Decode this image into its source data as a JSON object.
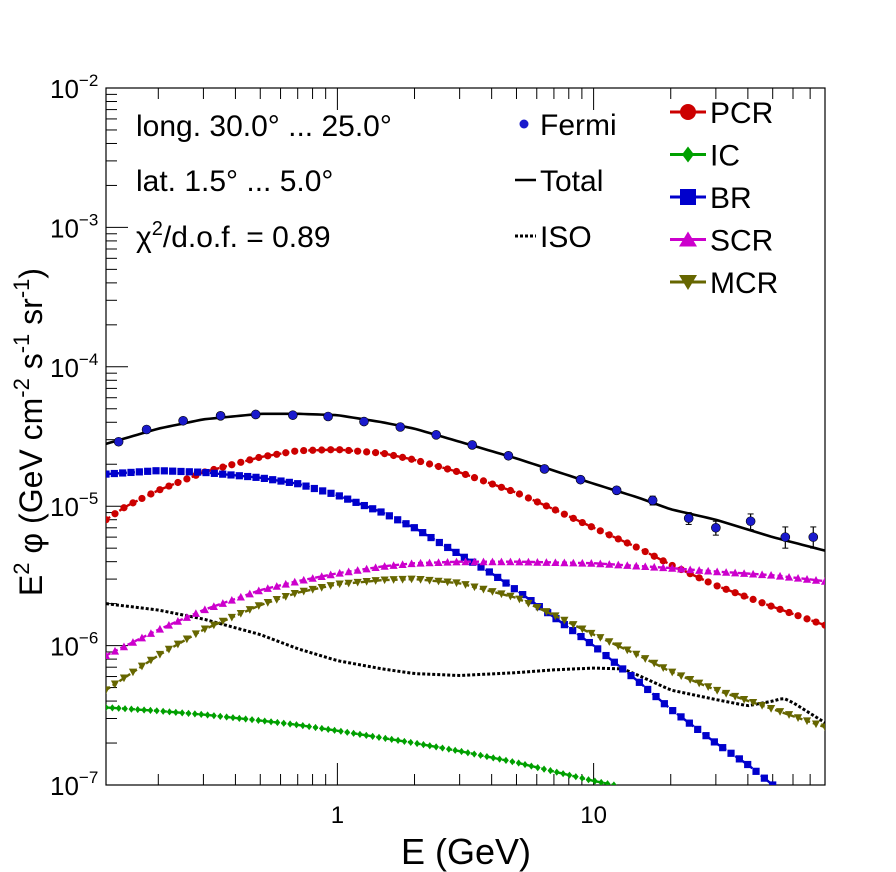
{
  "chart_data": {
    "type": "line",
    "title": "",
    "xlabel": "E (GeV)",
    "ylabel_parts": [
      "E",
      "2",
      " φ (GeV cm",
      "-2",
      " s",
      "-1",
      " sr",
      "-1",
      ")"
    ],
    "x_scale": "log",
    "y_scale": "log",
    "xlim": [
      0.125,
      80
    ],
    "ylim": [
      1e-07,
      0.01
    ],
    "x_tick_labels": [
      {
        "value": 1,
        "label": "1"
      },
      {
        "value": 10,
        "label": "10"
      }
    ],
    "y_tick_labels": [
      {
        "value": 1e-07,
        "base": "10",
        "exp": "−7"
      },
      {
        "value": 1e-06,
        "base": "10",
        "exp": "−6"
      },
      {
        "value": 1e-05,
        "base": "10",
        "exp": "−5"
      },
      {
        "value": 0.0001,
        "base": "10",
        "exp": "−4"
      },
      {
        "value": 0.001,
        "base": "10",
        "exp": "−3"
      },
      {
        "value": 0.01,
        "base": "10",
        "exp": "−2"
      }
    ],
    "annotations": {
      "longitude": "long. 30.0° ... 25.0°",
      "latitude": "lat. 1.5° ... 5.0°",
      "chi2_prefix": "χ",
      "chi2_sup": "2",
      "chi2_rest": "/d.o.f. = 0.89"
    },
    "legend_left": [
      {
        "name": "Fermi",
        "marker": "dot",
        "color": "#1a1acc"
      },
      {
        "name": "Total",
        "marker": "line",
        "color": "#000000"
      },
      {
        "name": "ISO",
        "marker": "dotted",
        "color": "#000000"
      }
    ],
    "legend_right": [
      {
        "name": "PCR",
        "marker": "circle",
        "color": "#cc0000"
      },
      {
        "name": "IC",
        "marker": "diamond",
        "color": "#00a000"
      },
      {
        "name": "BR",
        "marker": "square",
        "color": "#0000cc"
      },
      {
        "name": "SCR",
        "marker": "triangle-up",
        "color": "#cc00cc"
      },
      {
        "name": "MCR",
        "marker": "triangle-down",
        "color": "#666600"
      }
    ],
    "fermi": {
      "name": "Fermi",
      "color": "#1a1acc",
      "x": [
        0.14,
        0.18,
        0.25,
        0.35,
        0.48,
        0.67,
        0.92,
        1.27,
        1.76,
        2.43,
        3.36,
        4.65,
        6.43,
        8.89,
        12.3,
        17.0,
        23.5,
        30.0,
        41.0,
        56.0,
        72.0
      ],
      "y": [
        2.9e-05,
        3.55e-05,
        4.1e-05,
        4.45e-05,
        4.55e-05,
        4.5e-05,
        4.4e-05,
        4.05e-05,
        3.7e-05,
        3.25e-05,
        2.75e-05,
        2.3e-05,
        1.85e-05,
        1.55e-05,
        1.3e-05,
        1.1e-05,
        8.2e-06,
        7e-06,
        7.8e-06,
        6e-06,
        6e-06
      ],
      "err_lo": [
        2.8e-05,
        3.45e-05,
        4e-05,
        4.35e-05,
        4.45e-05,
        4.4e-05,
        4.3e-05,
        3.95e-05,
        3.6e-05,
        3.15e-05,
        2.65e-05,
        2.2e-05,
        1.77e-05,
        1.48e-05,
        1.23e-05,
        1.02e-05,
        7.4e-06,
        6.2e-06,
        6.8e-06,
        5e-06,
        5e-06
      ],
      "err_hi": [
        3e-05,
        3.65e-05,
        4.2e-05,
        4.55e-05,
        4.65e-05,
        4.6e-05,
        4.5e-05,
        4.15e-05,
        3.8e-05,
        3.35e-05,
        2.85e-05,
        2.4e-05,
        1.93e-05,
        1.62e-05,
        1.37e-05,
        1.18e-05,
        9e-06,
        7.8e-06,
        8.8e-06,
        7.1e-06,
        7.1e-06
      ]
    },
    "series": [
      {
        "name": "Total",
        "color": "#000000",
        "style": "solid",
        "marker": "none",
        "x": [
          0.125,
          0.2,
          0.3,
          0.5,
          0.7,
          1.0,
          1.5,
          2.0,
          3.0,
          5.0,
          7.0,
          10,
          15,
          20,
          30,
          50,
          80
        ],
        "y": [
          2.8e-05,
          3.6e-05,
          4.2e-05,
          4.6e-05,
          4.6e-05,
          4.5e-05,
          4e-05,
          3.6e-05,
          2.9e-05,
          2.2e-05,
          1.8e-05,
          1.45e-05,
          1.15e-05,
          9.5e-06,
          8e-06,
          6e-06,
          4.8e-06
        ]
      },
      {
        "name": "ISO",
        "color": "#000000",
        "style": "dotted",
        "marker": "none",
        "x": [
          0.125,
          0.2,
          0.3,
          0.5,
          0.7,
          1.0,
          1.5,
          2.0,
          3.0,
          5.0,
          7.0,
          10,
          13,
          15,
          20,
          30,
          40,
          50,
          55,
          60,
          80
        ],
        "y": [
          2e-06,
          1.8e-06,
          1.55e-06,
          1.2e-06,
          9.5e-07,
          7.8e-07,
          6.8e-07,
          6.3e-07,
          6.1e-07,
          6.4e-07,
          6.7e-07,
          6.9e-07,
          6.8e-07,
          6.1e-07,
          4.8e-07,
          4.1e-07,
          3.7e-07,
          4e-07,
          4.2e-07,
          3.9e-07,
          2.8e-07
        ]
      },
      {
        "name": "PCR",
        "color": "#cc0000",
        "style": "dashed",
        "marker": "circle",
        "x": [
          0.125,
          0.15,
          0.2,
          0.3,
          0.5,
          0.7,
          1.0,
          1.5,
          2.0,
          3.0,
          5.0,
          7.0,
          10,
          15,
          20,
          30,
          50,
          80
        ],
        "y": [
          8e-06,
          1e-05,
          1.3e-05,
          1.75e-05,
          2.25e-05,
          2.5e-05,
          2.55e-05,
          2.4e-05,
          2.15e-05,
          1.75e-05,
          1.25e-05,
          9.5e-06,
          7e-06,
          5e-06,
          3.8e-06,
          2.7e-06,
          1.9e-06,
          1.4e-06
        ]
      },
      {
        "name": "IC",
        "color": "#00a000",
        "style": "dashed",
        "marker": "diamond",
        "x": [
          0.125,
          0.2,
          0.3,
          0.5,
          0.7,
          1.0,
          2.0,
          3.0,
          5.0,
          7.0,
          10,
          12
        ],
        "y": [
          3.6e-07,
          3.4e-07,
          3.2e-07,
          2.9e-07,
          2.7e-07,
          2.45e-07,
          2e-07,
          1.75e-07,
          1.45e-07,
          1.25e-07,
          1.07e-07,
          1e-07
        ]
      },
      {
        "name": "BR",
        "color": "#0000cc",
        "style": "dashed",
        "marker": "square",
        "x": [
          0.125,
          0.2,
          0.3,
          0.5,
          0.7,
          1.0,
          1.5,
          2.0,
          3.0,
          4.0,
          5.0,
          7.0,
          10,
          15,
          20,
          30,
          40,
          50
        ],
        "y": [
          1.7e-05,
          1.8e-05,
          1.75e-05,
          1.6e-05,
          1.45e-05,
          1.2e-05,
          9e-06,
          7e-06,
          4.5e-06,
          3.3e-06,
          2.5e-06,
          1.6e-06,
          1e-06,
          5.5e-07,
          3.5e-07,
          2e-07,
          1.4e-07,
          1e-07
        ]
      },
      {
        "name": "SCR",
        "color": "#cc00cc",
        "style": "dashed",
        "marker": "triangle-up",
        "x": [
          0.125,
          0.2,
          0.3,
          0.5,
          0.7,
          1.0,
          1.5,
          2.0,
          3.0,
          5.0,
          10,
          20,
          30,
          50,
          80
        ],
        "y": [
          8.5e-07,
          1.3e-06,
          1.8e-06,
          2.5e-06,
          2.9e-06,
          3.3e-06,
          3.7e-06,
          3.9e-06,
          4e-06,
          4e-06,
          3.9e-06,
          3.6e-06,
          3.4e-06,
          3.2e-06,
          2.9e-06
        ]
      },
      {
        "name": "MCR",
        "color": "#666600",
        "style": "dashed",
        "marker": "triangle-down",
        "x": [
          0.125,
          0.2,
          0.3,
          0.5,
          0.7,
          1.0,
          1.5,
          2.0,
          3.0,
          5.0,
          7.0,
          10,
          15,
          20,
          30,
          50,
          80
        ],
        "y": [
          4.8e-07,
          8.5e-07,
          1.3e-06,
          1.95e-06,
          2.4e-06,
          2.75e-06,
          2.95e-06,
          3e-06,
          2.8e-06,
          2.2e-06,
          1.65e-06,
          1.2e-06,
          8.5e-07,
          6.5e-07,
          4.8e-07,
          3.5e-07,
          2.6e-07
        ]
      }
    ]
  }
}
